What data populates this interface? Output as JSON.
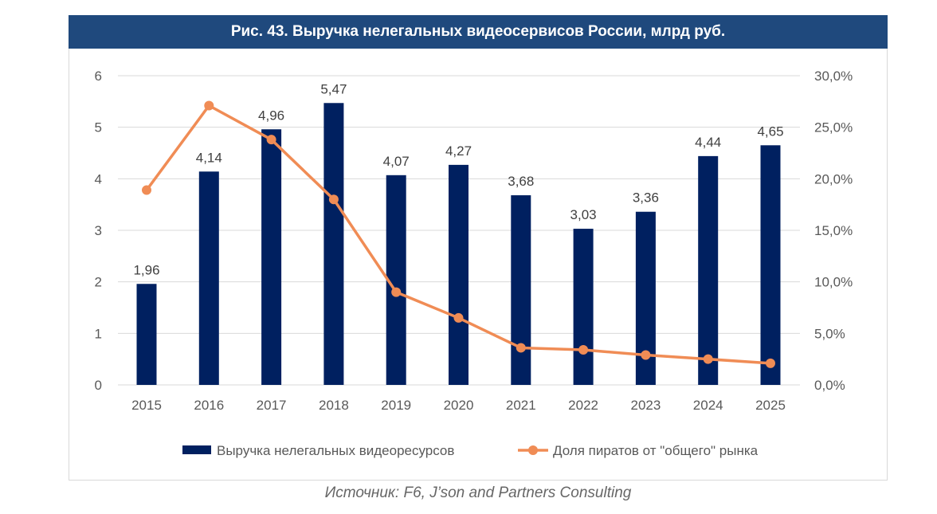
{
  "chart_data": {
    "type": "bar",
    "title": "Рис. 43. Выручка нелегальных видеосервисов России, млрд руб.",
    "source": "Источник: F6, J’son and Partners Consulting",
    "categories": [
      "2015",
      "2016",
      "2017",
      "2018",
      "2019",
      "2020",
      "2021",
      "2022",
      "2023",
      "2024",
      "2025"
    ],
    "series": [
      {
        "name": "Выручка нелегальных видеоресурсов",
        "type": "bar",
        "axis": "left",
        "color": "#002060",
        "values": [
          1.96,
          4.14,
          4.96,
          5.47,
          4.07,
          4.27,
          3.68,
          3.03,
          3.36,
          4.44,
          4.65
        ],
        "labels": [
          "1,96",
          "4,14",
          "4,96",
          "5,47",
          "4,07",
          "4,27",
          "3,68",
          "3,03",
          "3,36",
          "4,44",
          "4,65"
        ]
      },
      {
        "name": "Доля пиратов от \"общего\" рынка",
        "type": "line",
        "axis": "right",
        "color": "#f08c55",
        "values": [
          18.9,
          27.1,
          23.8,
          18.0,
          9.0,
          6.5,
          3.6,
          3.4,
          2.9,
          2.5,
          2.1
        ]
      }
    ],
    "left_axis": {
      "ylim": [
        0,
        6
      ],
      "ticks": [
        "0",
        "1",
        "2",
        "3",
        "4",
        "5",
        "6"
      ]
    },
    "right_axis": {
      "ylim": [
        0,
        30
      ],
      "ticks": [
        "0,0%",
        "5,0%",
        "10,0%",
        "15,0%",
        "20,0%",
        "25,0%",
        "30,0%"
      ]
    },
    "grid": true,
    "legend": "bottom"
  }
}
